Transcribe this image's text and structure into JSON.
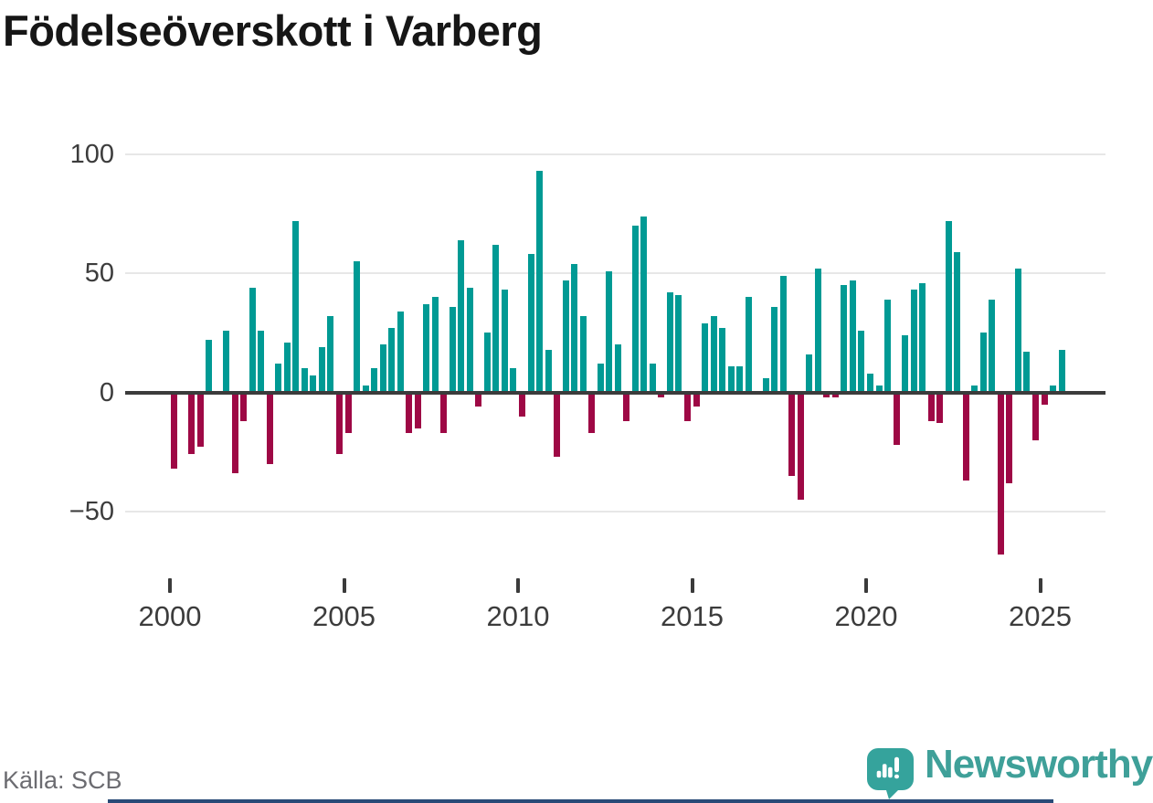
{
  "title": "Födelseöverskott i Varberg",
  "source": {
    "label": "Källa: SCB"
  },
  "brand": {
    "name": "Newsworthy",
    "logo_icon": "newsworthy-speech-bubble-bar-chart-icon",
    "wordmark_color": "#3fa099",
    "bubble_color": "#35a39c"
  },
  "chart_data": {
    "type": "bar",
    "title": "Födelseöverskott i Varberg",
    "frequency": "quarterly",
    "start_period": "2000 Q1",
    "end_period": "2025 Q3",
    "grid": true,
    "positive_color": "#009a94",
    "negative_color": "#9e0845",
    "x_tick_labels": [
      "2000",
      "2005",
      "2010",
      "2015",
      "2020",
      "2025"
    ],
    "y_tick_labels": [
      "100",
      "50",
      "0",
      "−50"
    ],
    "y_tick_values": [
      100,
      50,
      0,
      -50
    ],
    "ylim": [
      -70,
      100
    ],
    "periods": [
      "2000 Q1",
      "2000 Q2",
      "2000 Q3",
      "2000 Q4",
      "2001 Q1",
      "2001 Q2",
      "2001 Q3",
      "2001 Q4",
      "2002 Q1",
      "2002 Q2",
      "2002 Q3",
      "2002 Q4",
      "2003 Q1",
      "2003 Q2",
      "2003 Q3",
      "2003 Q4",
      "2004 Q1",
      "2004 Q2",
      "2004 Q3",
      "2004 Q4",
      "2005 Q1",
      "2005 Q2",
      "2005 Q3",
      "2005 Q4",
      "2006 Q1",
      "2006 Q2",
      "2006 Q3",
      "2006 Q4",
      "2007 Q1",
      "2007 Q2",
      "2007 Q3",
      "2007 Q4",
      "2008 Q1",
      "2008 Q2",
      "2008 Q3",
      "2008 Q4",
      "2009 Q1",
      "2009 Q2",
      "2009 Q3",
      "2009 Q4",
      "2010 Q1",
      "2010 Q2",
      "2010 Q3",
      "2010 Q4",
      "2011 Q1",
      "2011 Q2",
      "2011 Q3",
      "2011 Q4",
      "2012 Q1",
      "2012 Q2",
      "2012 Q3",
      "2012 Q4",
      "2013 Q1",
      "2013 Q2",
      "2013 Q3",
      "2013 Q4",
      "2014 Q1",
      "2014 Q2",
      "2014 Q3",
      "2014 Q4",
      "2015 Q1",
      "2015 Q2",
      "2015 Q3",
      "2015 Q4",
      "2016 Q1",
      "2016 Q2",
      "2016 Q3",
      "2016 Q4",
      "2017 Q1",
      "2017 Q2",
      "2017 Q3",
      "2017 Q4",
      "2018 Q1",
      "2018 Q2",
      "2018 Q3",
      "2018 Q4",
      "2019 Q1",
      "2019 Q2",
      "2019 Q3",
      "2019 Q4",
      "2020 Q1",
      "2020 Q2",
      "2020 Q3",
      "2020 Q4",
      "2021 Q1",
      "2021 Q2",
      "2021 Q3",
      "2021 Q4",
      "2022 Q1",
      "2022 Q2",
      "2022 Q3",
      "2022 Q4",
      "2023 Q1",
      "2023 Q2",
      "2023 Q3",
      "2023 Q4",
      "2024 Q1",
      "2024 Q2",
      "2024 Q3",
      "2024 Q4",
      "2025 Q1",
      "2025 Q2",
      "2025 Q3"
    ],
    "values": [
      -32,
      0,
      -26,
      -23,
      22,
      0,
      26,
      -34,
      -12,
      44,
      26,
      -30,
      12,
      21,
      72,
      10,
      7,
      19,
      32,
      -26,
      -17,
      55,
      3,
      10,
      20,
      27,
      34,
      -17,
      -15,
      37,
      40,
      -17,
      36,
      64,
      44,
      -6,
      25,
      62,
      43,
      10,
      -10,
      58,
      93,
      18,
      -27,
      47,
      54,
      32,
      -17,
      12,
      51,
      20,
      -12,
      70,
      74,
      12,
      -2,
      42,
      41,
      -12,
      -6,
      29,
      32,
      27,
      11,
      11,
      40,
      0,
      6,
      36,
      49,
      -35,
      -45,
      16,
      52,
      -2,
      -2,
      45,
      47,
      26,
      8,
      3,
      39,
      -22,
      24,
      43,
      46,
      -12,
      -13,
      72,
      59,
      -37,
      3,
      25,
      39,
      -68,
      -38,
      52,
      17,
      -20,
      -5,
      3,
      18
    ]
  }
}
